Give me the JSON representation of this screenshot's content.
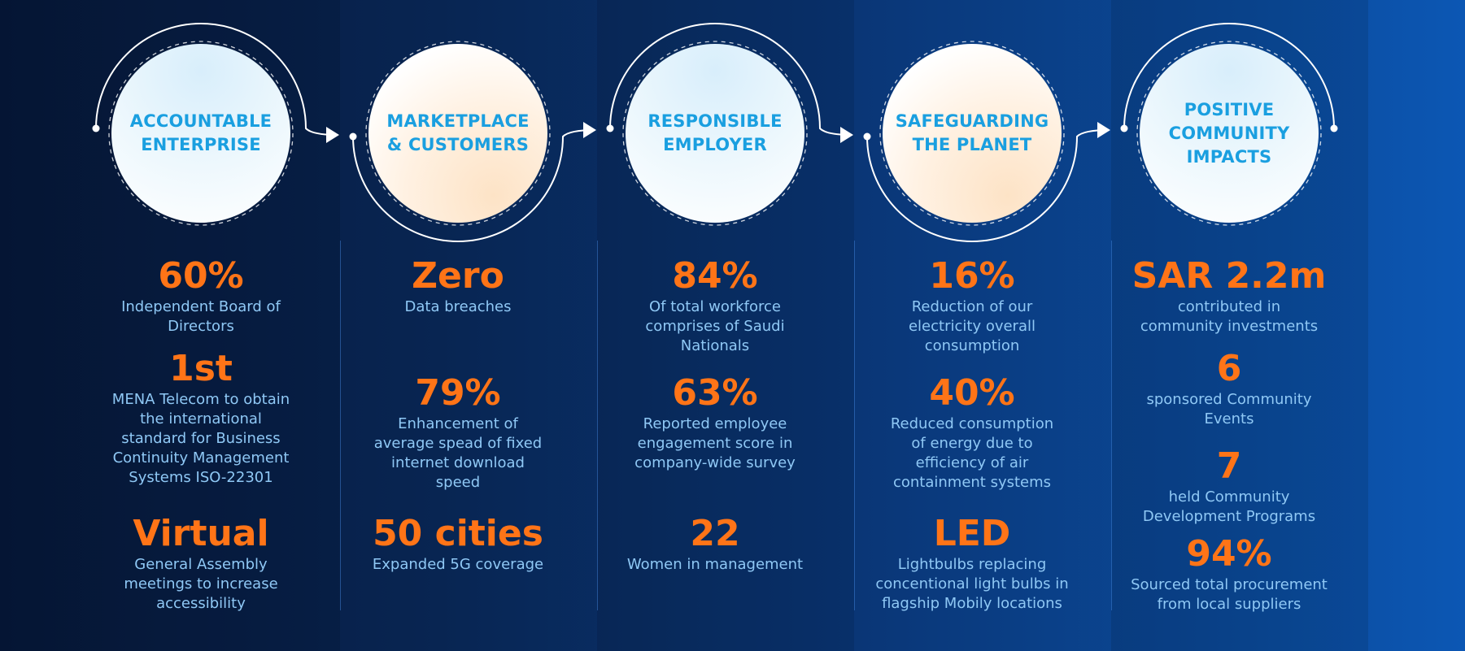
{
  "pillars": [
    {
      "title": "ACCOUNTABLE\nENTERPRISE",
      "stats": [
        {
          "value": "60%",
          "label": "Independent Board of\nDirectors"
        },
        {
          "value": "1st",
          "label": "MENA Telecom to obtain\nthe international\nstandard for Business\nContinuity Management\nSystems ISO-22301"
        },
        {
          "value": "Virtual",
          "label": "General Assembly\nmeetings to increase\naccessibility"
        }
      ]
    },
    {
      "title": "MARKETPLACE\n& CUSTOMERS",
      "stats": [
        {
          "value": "Zero",
          "label": "Data breaches"
        },
        {
          "value": "79%",
          "label": "Enhancement of\naverage spead of fixed\ninternet download\nspeed"
        },
        {
          "value": "50 cities",
          "label": "Expanded 5G coverage"
        }
      ]
    },
    {
      "title": "RESPONSIBLE\nEMPLOYER",
      "stats": [
        {
          "value": "84%",
          "label": "Of total workforce\ncomprises of Saudi\nNationals"
        },
        {
          "value": "63%",
          "label": "Reported employee\nengagement score in\ncompany-wide survey"
        },
        {
          "value": "22",
          "label": "Women in management"
        }
      ]
    },
    {
      "title": "SAFEGUARDING\nTHE PLANET",
      "stats": [
        {
          "value": "16%",
          "label": "Reduction of our\nelectricity overall\nconsumption"
        },
        {
          "value": "40%",
          "label": "Reduced consumption\nof energy due to\nefficiency of air\ncontainment systems"
        },
        {
          "value": "LED",
          "label": "Lightbulbs replacing\nconcentional light bulbs in\nflagship Mobily locations"
        }
      ]
    },
    {
      "title": "POSITIVE\nCOMMUNITY\nIMPACTS",
      "stats": [
        {
          "value": "SAR 2.2m",
          "label": "contributed in\ncommunity investments"
        },
        {
          "value": "6",
          "label": "sponsored Community\nEvents"
        },
        {
          "value": "7",
          "label": "held Community\nDevelopment Programs"
        },
        {
          "value": "94%",
          "label": "Sourced total procurement\nfrom local suppliers"
        }
      ]
    }
  ],
  "colors": {
    "accent_orange": "#ff7417",
    "title_blue": "#1a9fe0",
    "label_blue": "#8fc8f5"
  }
}
